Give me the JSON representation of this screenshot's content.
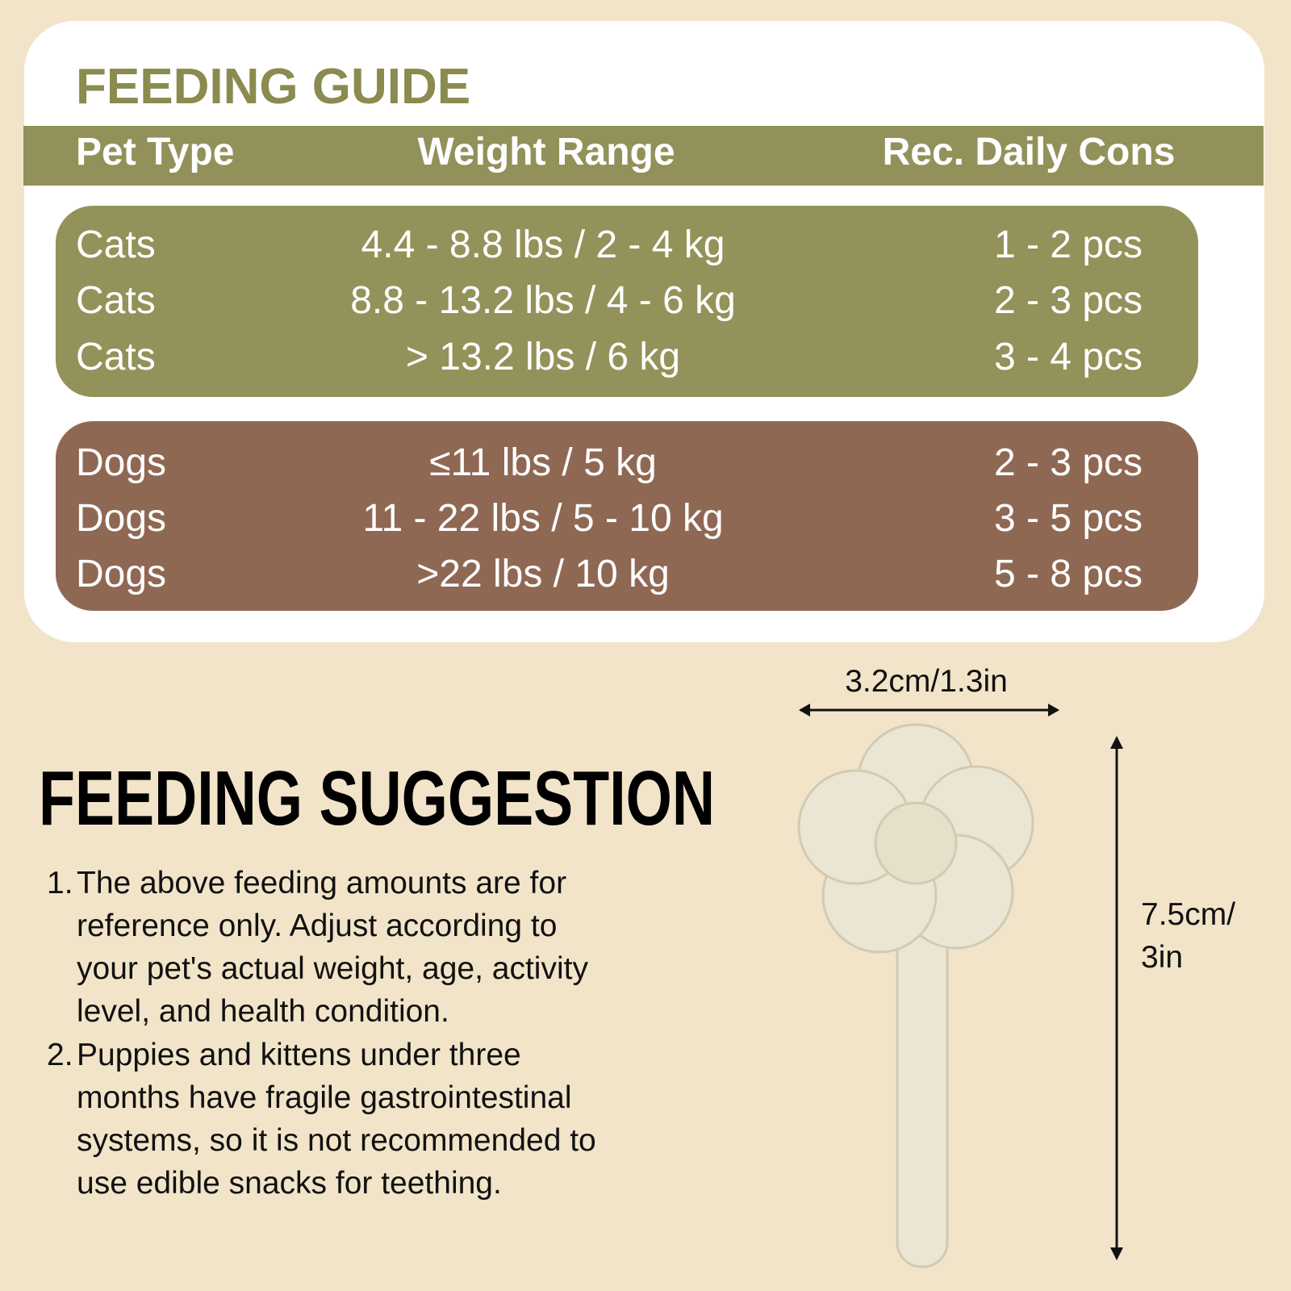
{
  "header": {
    "title": "FEEDING GUIDE"
  },
  "table": {
    "columns": [
      "Pet Type",
      "Weight Range",
      "Rec. Daily Cons"
    ],
    "cats": [
      [
        "Cats",
        "4.4 - 8.8 lbs / 2 - 4 kg",
        "1 - 2 pcs"
      ],
      [
        "Cats",
        "8.8 - 13.2 lbs / 4 - 6 kg",
        "2 - 3 pcs"
      ],
      [
        "Cats",
        "> 13.2 lbs / 6 kg",
        "3 - 4 pcs"
      ]
    ],
    "dogs": [
      [
        "Dogs",
        "≤11 lbs / 5 kg",
        "2 - 3 pcs"
      ],
      [
        "Dogs",
        "11 - 22 lbs / 5 - 10 kg",
        "3 - 5 pcs"
      ],
      [
        "Dogs",
        ">22 lbs / 10 kg",
        "5 - 8 pcs"
      ]
    ]
  },
  "suggestion": {
    "title": "FEEDING SUGGESTION",
    "notes": [
      {
        "number": "1.",
        "lines": [
          "The above feeding amounts are for",
          "reference only. Adjust according to",
          "your pet's actual weight, age, activity",
          "level, and health condition."
        ]
      },
      {
        "number": "2.",
        "lines": [
          "Puppies and kittens under three",
          "months have fragile gastrointestinal",
          "systems, so it is not recommended to",
          "use edible snacks for teething."
        ]
      }
    ]
  },
  "dimensions": {
    "width": "3.2cm/1.3in",
    "height": [
      "7.5cm/",
      "3in"
    ]
  }
}
